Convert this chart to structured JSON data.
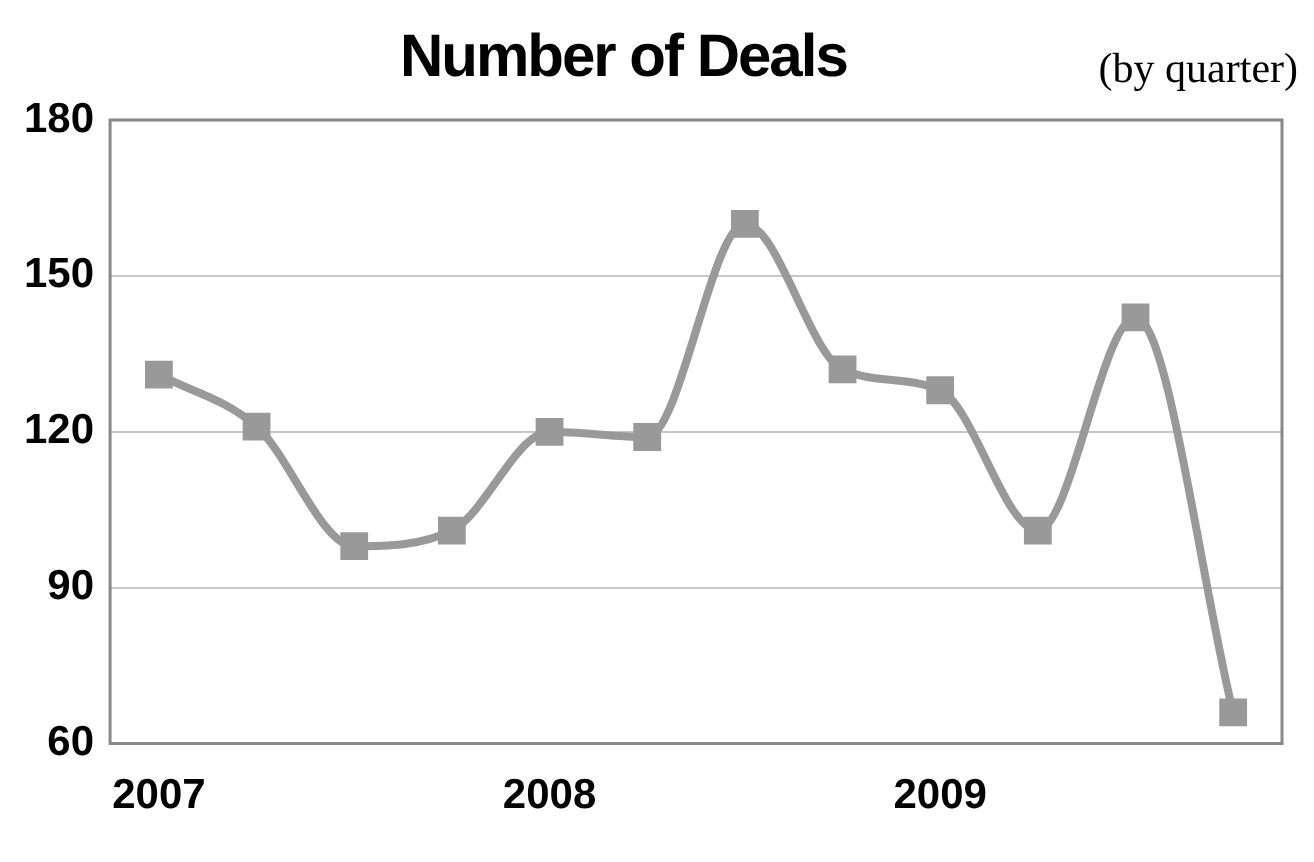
{
  "chart_data": {
    "type": "line",
    "title": "Number of Deals",
    "subtitle": "(by quarter)",
    "categories": [
      "2007",
      null,
      null,
      null,
      "2008",
      null,
      null,
      null,
      "2009",
      null,
      null,
      null
    ],
    "series": [
      {
        "color": "#999999",
        "values": [
          131,
          121,
          98,
          101,
          120,
          119,
          160,
          132,
          128,
          101,
          142,
          66
        ]
      }
    ],
    "ylim": [
      60,
      180
    ],
    "yticks": [
      60,
      90,
      120,
      150,
      180
    ],
    "grid": "y",
    "legend": false,
    "marker": "square",
    "line_style": "solid"
  }
}
